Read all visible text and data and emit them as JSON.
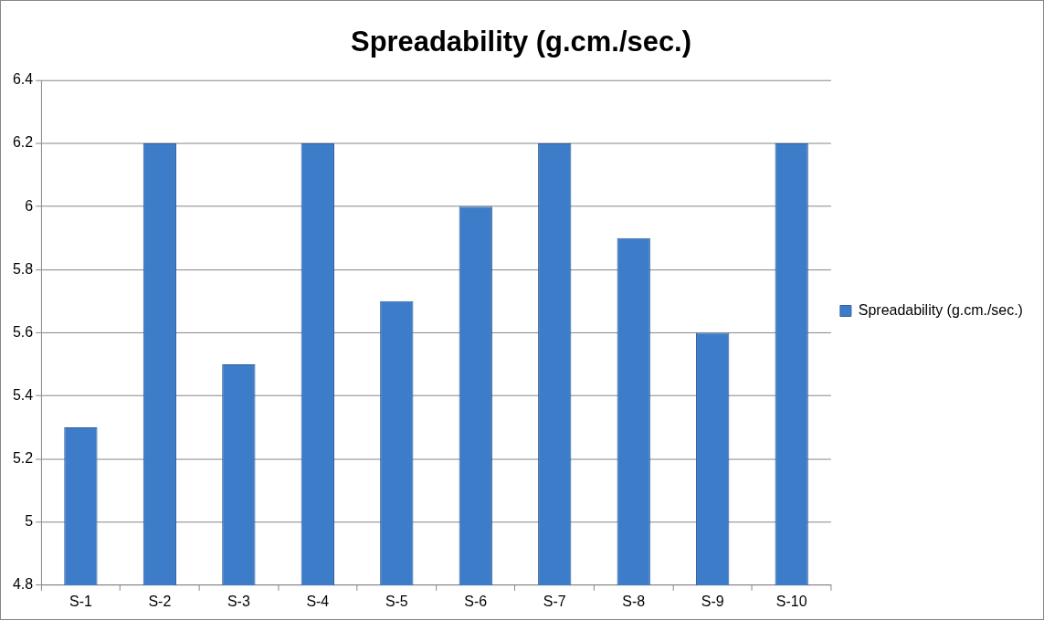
{
  "chart_data": {
    "type": "bar",
    "title": "Spreadability (g.cm./sec.)",
    "categories": [
      "S-1",
      "S-2",
      "S-3",
      "S-4",
      "S-5",
      "S-6",
      "S-7",
      "S-8",
      "S-9",
      "S-10"
    ],
    "series": [
      {
        "name": "Spreadability (g.cm./sec.)",
        "color": "#3d7cc9",
        "values": [
          5.3,
          6.2,
          5.5,
          6.2,
          5.7,
          6.0,
          6.2,
          5.9,
          5.6,
          6.2
        ]
      }
    ],
    "ylim": [
      4.8,
      6.4
    ],
    "yticks": [
      4.8,
      5,
      5.2,
      5.4,
      5.6,
      5.8,
      6,
      6.2,
      6.4
    ],
    "grid": "y",
    "legend": "right"
  }
}
